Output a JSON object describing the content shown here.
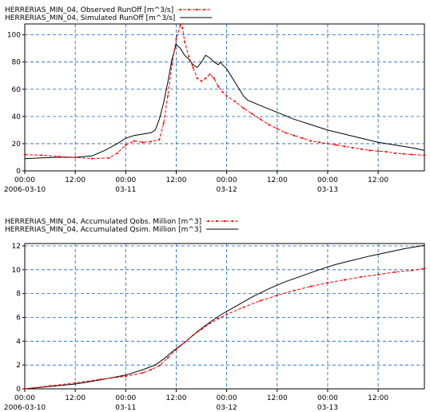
{
  "charts": [
    {
      "type": "line",
      "legend": [
        {
          "label": "HERRERIAS_MIN_04, Observed RunOff [m^3/s]",
          "color": "#ff0000",
          "dash": "4,2",
          "markers": true
        },
        {
          "label": "HERRERIAS_MIN_04, Simulated RunOff [m^3/s]",
          "color": "#000000",
          "dash": "",
          "markers": false
        }
      ],
      "y_ticks": [
        0,
        20,
        40,
        60,
        80,
        100
      ],
      "ylim": [
        0,
        108
      ],
      "x_ticks": [
        {
          "h": 0,
          "time": "00:00",
          "date": "2006-03-10"
        },
        {
          "h": 12,
          "time": "12:00",
          "date": ""
        },
        {
          "h": 24,
          "time": "00:00",
          "date": "03-11"
        },
        {
          "h": 36,
          "time": "12:00",
          "date": ""
        },
        {
          "h": 48,
          "time": "00:00",
          "date": "03-12"
        },
        {
          "h": 60,
          "time": "12:00",
          "date": ""
        },
        {
          "h": 72,
          "time": "00:00",
          "date": "03-13"
        },
        {
          "h": 84,
          "time": "12:00",
          "date": ""
        }
      ],
      "xlim_hours": [
        0,
        95
      ],
      "grid": true,
      "series": [
        {
          "name": "Observed RunOff",
          "points": [
            [
              0,
              12
            ],
            [
              4,
              11.5
            ],
            [
              8,
              10.5
            ],
            [
              12,
              10
            ],
            [
              16,
              9
            ],
            [
              20,
              9.5
            ],
            [
              22,
              13
            ],
            [
              24,
              19
            ],
            [
              26,
              22
            ],
            [
              28,
              21
            ],
            [
              30,
              21.5
            ],
            [
              32,
              23
            ],
            [
              33,
              35
            ],
            [
              34,
              55
            ],
            [
              35,
              78
            ],
            [
              36,
              97
            ],
            [
              37,
              107
            ],
            [
              37.5,
              105
            ],
            [
              38,
              95
            ],
            [
              39,
              84
            ],
            [
              40,
              76
            ],
            [
              41,
              68
            ],
            [
              42,
              66
            ],
            [
              43,
              68
            ],
            [
              44,
              71
            ],
            [
              45,
              68
            ],
            [
              46,
              62
            ],
            [
              47,
              58
            ],
            [
              48,
              55
            ],
            [
              50,
              51
            ],
            [
              52,
              46
            ],
            [
              54,
              42
            ],
            [
              56,
              38
            ],
            [
              58,
              34
            ],
            [
              60,
              31
            ],
            [
              62,
              28
            ],
            [
              64,
              26
            ],
            [
              66,
              24
            ],
            [
              68,
              22
            ],
            [
              70,
              21
            ],
            [
              72,
              20
            ],
            [
              74,
              19
            ],
            [
              76,
              18
            ],
            [
              78,
              17
            ],
            [
              80,
              16
            ],
            [
              82,
              15
            ],
            [
              84,
              14.5
            ],
            [
              86,
              14
            ],
            [
              88,
              13
            ],
            [
              90,
              12.5
            ],
            [
              92,
              12
            ],
            [
              95,
              11.5
            ]
          ]
        },
        {
          "name": "Simulated RunOff",
          "points": [
            [
              0,
              9
            ],
            [
              4,
              9.5
            ],
            [
              8,
              10
            ],
            [
              12,
              10
            ],
            [
              16,
              11
            ],
            [
              19,
              15
            ],
            [
              22,
              20
            ],
            [
              24,
              24
            ],
            [
              26,
              26
            ],
            [
              28,
              27
            ],
            [
              30,
              28
            ],
            [
              31,
              30
            ],
            [
              32,
              38
            ],
            [
              33,
              50
            ],
            [
              34,
              65
            ],
            [
              35,
              82
            ],
            [
              36,
              93
            ],
            [
              37,
              90
            ],
            [
              38,
              85
            ],
            [
              39,
              82
            ],
            [
              40,
              78
            ],
            [
              41,
              76
            ],
            [
              42,
              80
            ],
            [
              43,
              85
            ],
            [
              44,
              83
            ],
            [
              45,
              80
            ],
            [
              46,
              78
            ],
            [
              46.5,
              80
            ],
            [
              47,
              78
            ],
            [
              48,
              75
            ],
            [
              49,
              70
            ],
            [
              50,
              65
            ],
            [
              51,
              60
            ],
            [
              52,
              55
            ],
            [
              53,
              52
            ],
            [
              56,
              48
            ],
            [
              60,
              43
            ],
            [
              64,
              38
            ],
            [
              68,
              34
            ],
            [
              72,
              30
            ],
            [
              76,
              27
            ],
            [
              80,
              24
            ],
            [
              84,
              21
            ],
            [
              88,
              19
            ],
            [
              92,
              17
            ],
            [
              95,
              15
            ]
          ]
        }
      ]
    },
    {
      "type": "line",
      "legend": [
        {
          "label": "HERRERIAS_MIN_04, Accumulated Qobs. Million [m^3]",
          "color": "#ff0000",
          "dash": "4,2",
          "markers": true
        },
        {
          "label": "HERRERIAS_MIN_04, Accumulated Qsim. Million [m^3]",
          "color": "#000000",
          "dash": "",
          "markers": false
        }
      ],
      "y_ticks": [
        0,
        2,
        4,
        6,
        8,
        10,
        12
      ],
      "ylim": [
        0,
        12.2
      ],
      "x_ticks": [
        {
          "h": 0,
          "time": "00:00",
          "date": "2006-03-10"
        },
        {
          "h": 12,
          "time": "12:00",
          "date": ""
        },
        {
          "h": 24,
          "time": "00:00",
          "date": "03-11"
        },
        {
          "h": 36,
          "time": "12:00",
          "date": ""
        },
        {
          "h": 48,
          "time": "00:00",
          "date": "03-12"
        },
        {
          "h": 60,
          "time": "12:00",
          "date": ""
        },
        {
          "h": 72,
          "time": "00:00",
          "date": "03-13"
        },
        {
          "h": 84,
          "time": "12:00",
          "date": ""
        }
      ],
      "xlim_hours": [
        0,
        95
      ],
      "grid": true,
      "series": [
        {
          "name": "Accumulated Qobs.",
          "points": [
            [
              0,
              0
            ],
            [
              6,
              0.25
            ],
            [
              12,
              0.5
            ],
            [
              18,
              0.8
            ],
            [
              24,
              1.05
            ],
            [
              28,
              1.35
            ],
            [
              30,
              1.6
            ],
            [
              32,
              1.95
            ],
            [
              34,
              2.6
            ],
            [
              36,
              3.3
            ],
            [
              38,
              3.9
            ],
            [
              40,
              4.5
            ],
            [
              42,
              5.0
            ],
            [
              44,
              5.5
            ],
            [
              46,
              5.9
            ],
            [
              48,
              6.25
            ],
            [
              52,
              6.85
            ],
            [
              56,
              7.4
            ],
            [
              60,
              7.85
            ],
            [
              64,
              8.25
            ],
            [
              68,
              8.6
            ],
            [
              72,
              8.9
            ],
            [
              76,
              9.15
            ],
            [
              80,
              9.4
            ],
            [
              84,
              9.6
            ],
            [
              88,
              9.8
            ],
            [
              92,
              9.95
            ],
            [
              95,
              10.1
            ]
          ]
        },
        {
          "name": "Accumulated Qsim.",
          "points": [
            [
              0,
              0
            ],
            [
              6,
              0.2
            ],
            [
              12,
              0.4
            ],
            [
              18,
              0.75
            ],
            [
              24,
              1.15
            ],
            [
              28,
              1.6
            ],
            [
              31,
              2.0
            ],
            [
              33,
              2.5
            ],
            [
              35,
              3.1
            ],
            [
              38,
              3.9
            ],
            [
              41,
              4.8
            ],
            [
              44,
              5.6
            ],
            [
              47,
              6.3
            ],
            [
              50,
              6.9
            ],
            [
              54,
              7.7
            ],
            [
              58,
              8.4
            ],
            [
              62,
              9.0
            ],
            [
              66,
              9.5
            ],
            [
              70,
              10.0
            ],
            [
              74,
              10.45
            ],
            [
              78,
              10.8
            ],
            [
              82,
              11.15
            ],
            [
              86,
              11.45
            ],
            [
              90,
              11.75
            ],
            [
              95,
              12.05
            ]
          ]
        }
      ]
    }
  ]
}
